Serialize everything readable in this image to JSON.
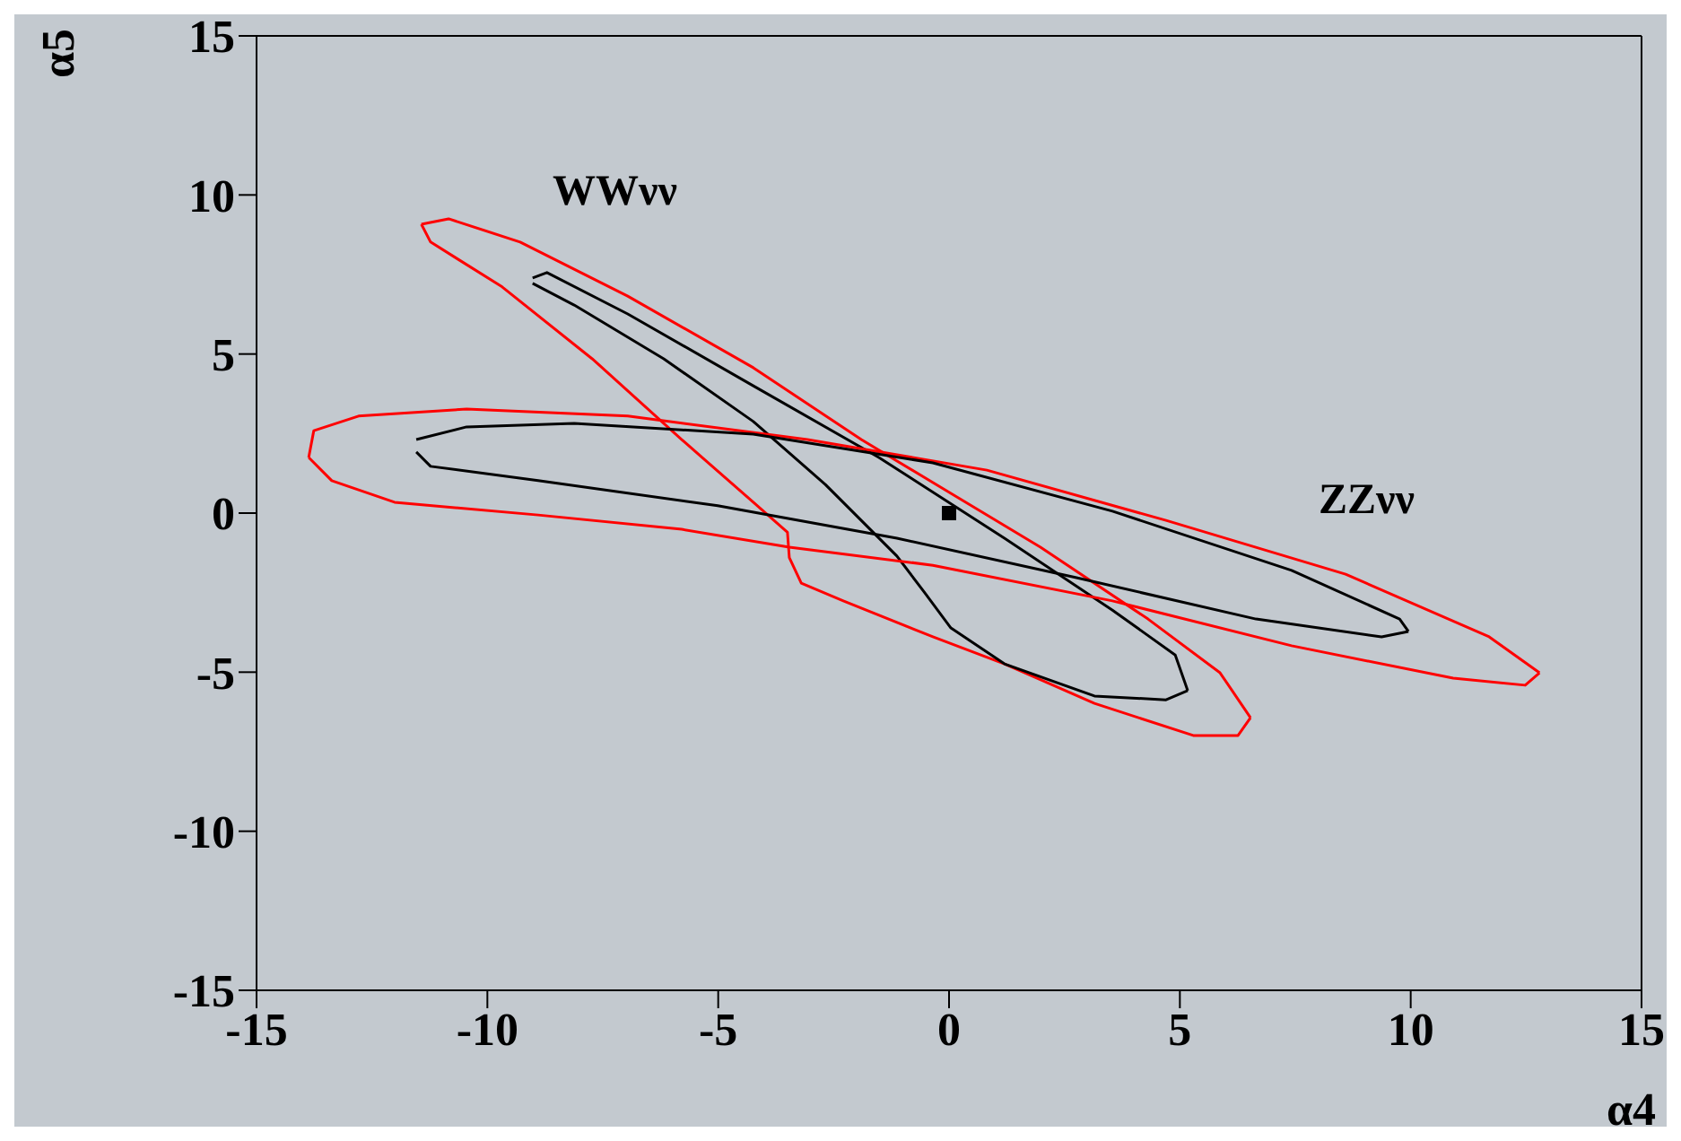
{
  "chart_data": {
    "type": "line",
    "xlabel": "α4",
    "ylabel": "α5",
    "xlim": [
      -15,
      15
    ],
    "ylim": [
      -15,
      15
    ],
    "xticks": [
      -15,
      -10,
      -5,
      0,
      5,
      10,
      15
    ],
    "yticks": [
      -15,
      -10,
      -5,
      0,
      5,
      10,
      15
    ],
    "line_style": "solid",
    "annotations": [
      "WWνν",
      "ZZνν"
    ],
    "series": [
      {
        "color": "#ff0000",
        "x": [
          -11.43,
          -10.84,
          -9.29,
          -6.96,
          -4.24,
          -1.9,
          0.04,
          1.98,
          4.31,
          5.87,
          6.53
        ],
        "values": [
          9.08,
          9.25,
          8.52,
          6.82,
          4.57,
          2.31,
          0.62,
          -1.07,
          -3.33,
          -5.02,
          -6.43
        ]
      },
      {
        "color": "#ff0000",
        "x": [
          6.53,
          6.26,
          5.29,
          3.15,
          1.2,
          -0.35,
          -2.29,
          -3.2,
          -3.46,
          -3.5,
          -4.24,
          -5.79,
          -7.73,
          -9.68,
          -11.23,
          -11.43
        ],
        "values": [
          -6.43,
          -6.99,
          -6.99,
          -5.98,
          -4.74,
          -3.89,
          -2.76,
          -2.2,
          -1.4,
          -0.6,
          0.34,
          2.31,
          4.85,
          7.11,
          8.52,
          9.08
        ]
      },
      {
        "color": "#000000",
        "x": [
          -9.02,
          -8.71,
          -6.96,
          -4.24,
          -1.52,
          1.2,
          3.54,
          4.9,
          5.17
        ],
        "values": [
          7.39,
          7.56,
          6.26,
          4,
          1.75,
          -0.79,
          -3.05,
          -4.46,
          -5.58
        ]
      },
      {
        "color": "#000000",
        "x": [
          5.17,
          4.7,
          3.15,
          1.2,
          0.04,
          -0.54,
          -1.13,
          -2.68,
          -4.24,
          -6.18,
          -8.12,
          -9.02
        ],
        "values": [
          -5.58,
          -5.87,
          -5.75,
          -4.74,
          -3.61,
          -2.48,
          -1.35,
          0.9,
          2.88,
          4.85,
          6.54,
          7.22
        ]
      },
      {
        "color": "#ff0000",
        "x": [
          -13.87,
          -13.76,
          -12.79,
          -10.45,
          -6.96,
          -3.07,
          0.82,
          4.7,
          8.59,
          11.7,
          12.79
        ],
        "values": [
          1.75,
          2.59,
          3.05,
          3.27,
          3.05,
          2.31,
          1.35,
          -0.23,
          -1.92,
          -3.89,
          -5.02
        ]
      },
      {
        "color": "#ff0000",
        "x": [
          12.79,
          12.48,
          10.92,
          7.42,
          3.54,
          -0.35,
          -3.46,
          -5.79,
          -8.9,
          -12.01,
          -13.37,
          -13.87
        ],
        "values": [
          -5.02,
          -5.41,
          -5.19,
          -4.17,
          -2.76,
          -1.64,
          -1.07,
          -0.51,
          -0.06,
          0.34,
          1.02,
          1.75
        ]
      },
      {
        "color": "#000000",
        "x": [
          -11.54,
          -10.45,
          -8.12,
          -4.24,
          -0.35,
          3.54,
          7.42,
          9.76,
          9.95
        ],
        "values": [
          2.31,
          2.71,
          2.82,
          2.48,
          1.58,
          0.06,
          -1.8,
          -3.33,
          -3.72
        ]
      },
      {
        "color": "#000000",
        "x": [
          9.95,
          9.37,
          6.65,
          2.76,
          -1.13,
          -5.01,
          -8.9,
          -11.23,
          -11.54
        ],
        "values": [
          -3.72,
          -3.89,
          -3.33,
          -2.03,
          -0.79,
          0.23,
          1.02,
          1.47,
          1.92
        ]
      },
      {
        "type": "scatter",
        "marker": "square",
        "color": "#000000",
        "x": [
          0
        ],
        "values": [
          0
        ]
      }
    ]
  }
}
